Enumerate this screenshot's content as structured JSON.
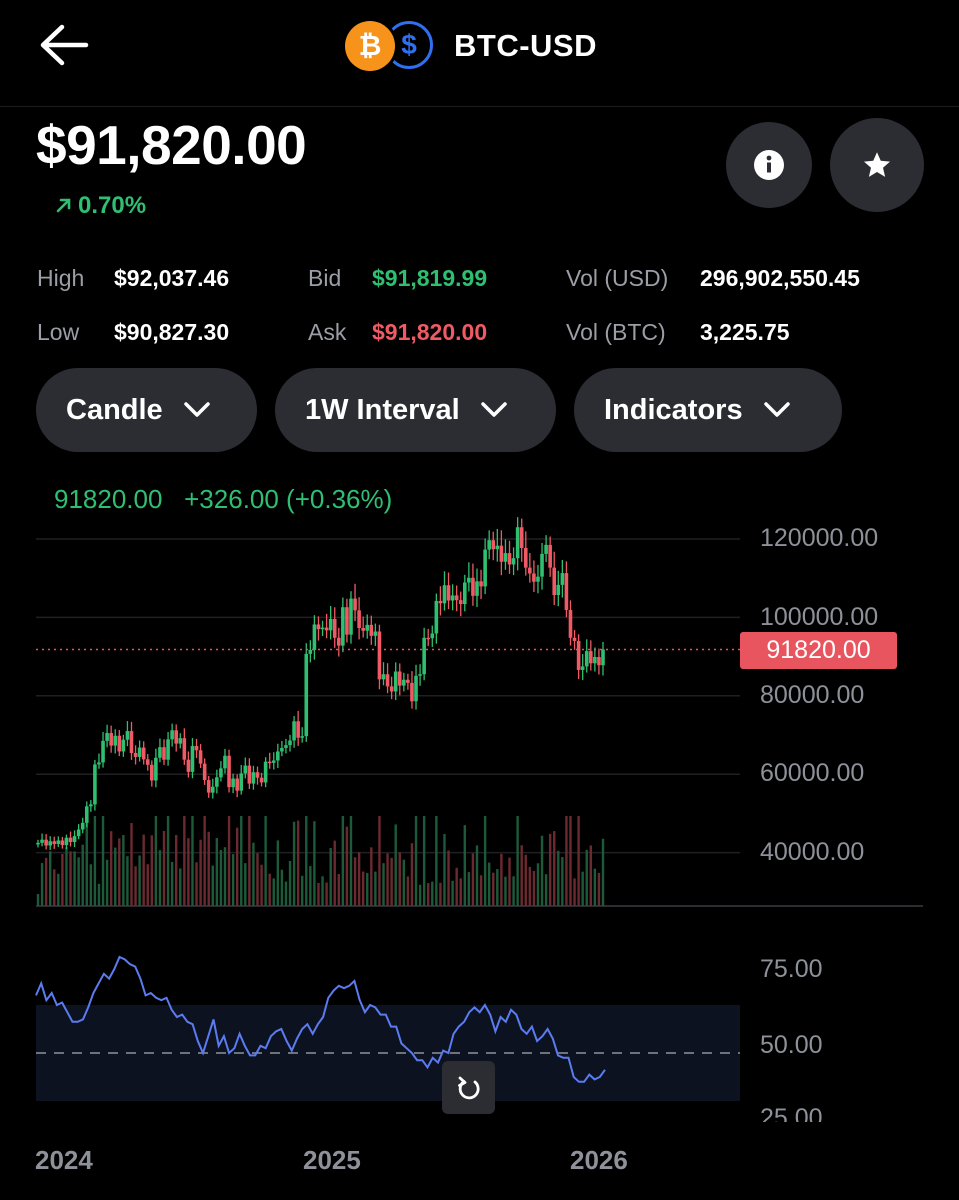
{
  "header": {
    "pair": "BTC-USD",
    "coin_btc_symbol": "₿",
    "coin_usd_symbol": "$"
  },
  "price": "$91,820.00",
  "change": "0.70%",
  "stats": {
    "high_label": "High",
    "high_value": "$92,037.46",
    "low_label": "Low",
    "low_value": "$90,827.30",
    "bid_label": "Bid",
    "bid_value": "$91,819.99",
    "ask_label": "Ask",
    "ask_value": "$91,820.00",
    "vol_usd_label": "Vol (USD)",
    "vol_usd_value": "296,902,550.45",
    "vol_btc_label": "Vol (BTC)",
    "vol_btc_value": "3,225.75"
  },
  "controls": {
    "chart_type": "Candle",
    "interval": "1W Interval",
    "indicators": "Indicators"
  },
  "icons": {
    "back": "arrow-left-icon",
    "info": "info-icon",
    "star": "star-icon",
    "reset": "reset-icon",
    "chevron": "chevron-down-icon"
  },
  "colors": {
    "up": "#2fbf71",
    "down": "#f05a64",
    "rsi": "#5b7cf0",
    "price_line": "#e8555f"
  },
  "chart_data": [
    {
      "type": "candlestick",
      "legend": {
        "close": "91820.00",
        "change": "+326.00 (+0.36%)"
      },
      "current_price": 91820,
      "current_price_label": "91820.00",
      "ylim": [
        25000,
        130000
      ],
      "yticks": [
        {
          "value": 120000,
          "label": "120000.00"
        },
        {
          "value": 100000,
          "label": "100000.00"
        },
        {
          "value": 80000,
          "label": "80000.00"
        },
        {
          "value": 60000,
          "label": "60000.00"
        },
        {
          "value": 40000,
          "label": "40000.00"
        }
      ],
      "xticks": [
        {
          "value": 2024,
          "label": "2024"
        },
        {
          "value": 2025,
          "label": "2025"
        },
        {
          "value": 2026,
          "label": "2026"
        }
      ],
      "xlim": [
        2024.0,
        2026.68
      ],
      "close": [
        42500,
        43300,
        41800,
        42900,
        42200,
        43100,
        41900,
        43800,
        42700,
        44200,
        45900,
        47600,
        51800,
        52300,
        62500,
        63000,
        68500,
        70500,
        67300,
        69800,
        65800,
        68800,
        71000,
        65400,
        64400,
        66800,
        63800,
        62400,
        58400,
        64200,
        66900,
        63700,
        68900,
        71200,
        67800,
        69200,
        63700,
        60600,
        67200,
        66100,
        62700,
        58500,
        55300,
        56800,
        59200,
        61500,
        64700,
        56700,
        58900,
        55800,
        60200,
        62200,
        57600,
        60500,
        59100,
        57900,
        63200,
        62900,
        63500,
        65800,
        66700,
        67400,
        68600,
        73500,
        69300,
        69700,
        90700,
        91700,
        98200,
        97000,
        97400,
        96700,
        99600,
        94800,
        92800,
        102600,
        95600,
        104800,
        101800,
        97300,
        96600,
        98100,
        95300,
        96400,
        84200,
        85500,
        82400,
        81100,
        86200,
        82600,
        84100,
        83300,
        78600,
        85100,
        85500,
        94800,
        94700,
        95900,
        104200,
        103600,
        108200,
        104300,
        105600,
        104400,
        103400,
        108900,
        110100,
        105500,
        109200,
        107900,
        117300,
        119700,
        117400,
        118300,
        114200,
        116400,
        113500,
        115100,
        123000,
        117700,
        112700,
        111200,
        109100,
        110400,
        116200,
        118500,
        112700,
        105700,
        108300,
        111300,
        101900,
        94800,
        94000,
        86600,
        87500,
        91400,
        88300,
        89900,
        87800,
        91820
      ],
      "rsi": [
        74,
        79,
        72,
        75,
        70,
        71,
        67,
        63,
        63,
        64,
        69,
        75,
        79,
        83,
        81,
        85,
        90,
        89,
        87,
        86,
        81,
        74,
        75,
        73,
        72,
        73,
        68,
        65,
        66,
        63,
        62,
        55,
        50,
        57,
        64,
        53,
        57,
        50,
        52,
        58,
        53,
        49,
        49,
        53,
        52,
        57,
        59,
        60,
        55,
        51,
        56,
        60,
        62,
        58,
        62,
        65,
        73,
        76,
        78,
        77,
        78,
        80,
        72,
        67,
        70,
        69,
        66,
        66,
        61,
        61,
        54,
        52,
        50,
        47,
        47,
        44,
        48,
        46,
        51,
        50,
        58,
        61,
        63,
        67,
        69,
        67,
        70,
        66,
        59,
        65,
        63,
        68,
        66,
        60,
        58,
        61,
        55,
        57,
        60,
        56,
        49,
        48,
        48,
        40,
        38,
        38,
        41,
        39,
        40,
        43
      ],
      "rsi_ylim": [
        20,
        95
      ],
      "rsi_yticks": [
        {
          "value": 75,
          "label": "75.00"
        },
        {
          "value": 50,
          "label": "50.00"
        },
        {
          "value": 25,
          "label": "25.00"
        }
      ]
    }
  ]
}
